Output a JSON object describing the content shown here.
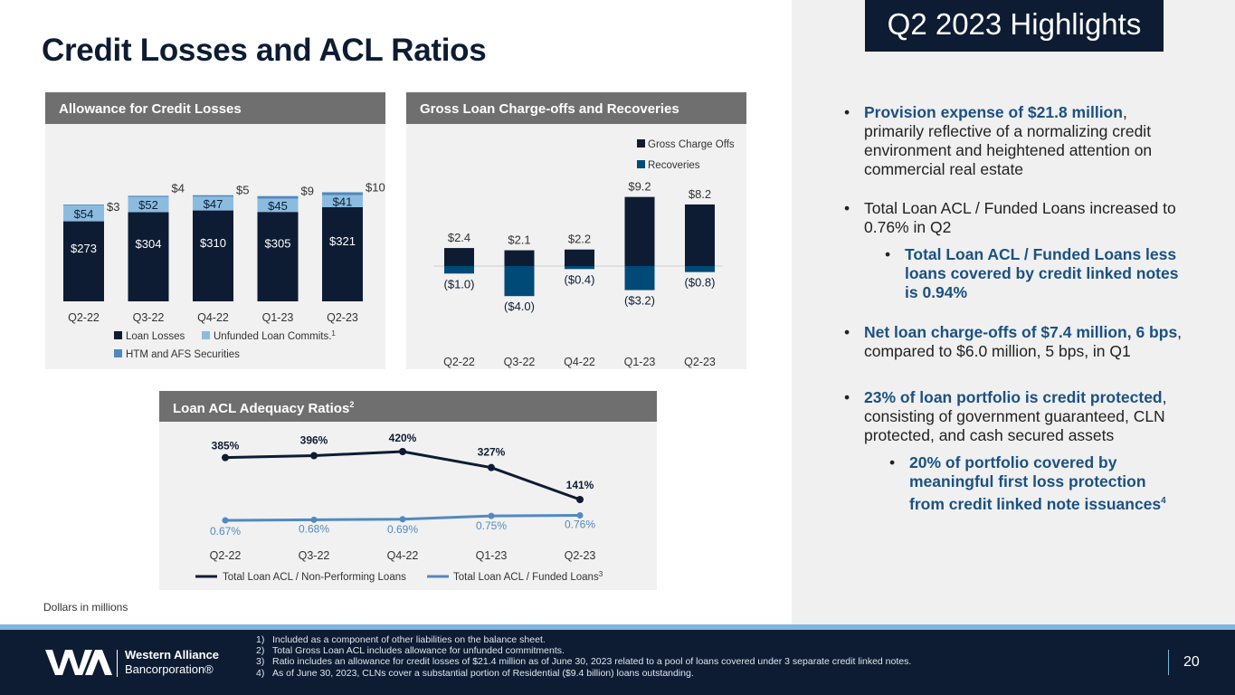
{
  "page": {
    "title": "Credit Losses and ACL Ratios",
    "highlights_badge": "Q2 2023 Highlights",
    "dollars_note": "Dollars in millions",
    "page_number": "20"
  },
  "colors": {
    "navy": "#0d1c33",
    "light_blue": "#8bbcdf",
    "mid_blue": "#4f88c0",
    "dark_blue": "#004a78",
    "line_blue": "#5289c1",
    "panel_header": "#6f6f6f"
  },
  "chart_data": [
    {
      "id": "allowance",
      "type": "bar",
      "stacked": true,
      "title": "Allowance for Credit Losses",
      "categories": [
        "Q2-22",
        "Q3-22",
        "Q4-22",
        "Q1-23",
        "Q2-23"
      ],
      "series": [
        {
          "name": "Loan Losses",
          "values": [
            273,
            304,
            310,
            305,
            321
          ],
          "labels": [
            "$273",
            "$304",
            "$310",
            "$305",
            "$321"
          ]
        },
        {
          "name": "Unfunded Loan Commits.",
          "name_sup": "1",
          "values": [
            54,
            52,
            47,
            45,
            41
          ],
          "labels": [
            "$54",
            "$52",
            "$47",
            "$45",
            "$41"
          ]
        },
        {
          "name": "HTM and AFS Securities",
          "values": [
            3,
            4,
            5,
            9,
            10
          ],
          "labels": [
            "$3",
            "$4",
            "$5",
            "$9",
            "$10"
          ]
        }
      ],
      "ylim": [
        0,
        380
      ]
    },
    {
      "id": "chargeoffs",
      "type": "bar",
      "title": "Gross Loan Charge-offs and Recoveries",
      "categories": [
        "Q2-22",
        "Q3-22",
        "Q4-22",
        "Q1-23",
        "Q2-23"
      ],
      "series": [
        {
          "name": "Gross Charge Offs",
          "values": [
            2.4,
            2.1,
            2.2,
            9.2,
            8.2
          ],
          "labels": [
            "$2.4",
            "$2.1",
            "$2.2",
            "$9.2",
            "$8.2"
          ]
        },
        {
          "name": "Recoveries",
          "values": [
            -1.0,
            -4.0,
            -0.4,
            -3.2,
            -0.8
          ],
          "labels": [
            "($1.0)",
            "($4.0)",
            "($0.4)",
            "($3.2)",
            "($0.8)"
          ]
        }
      ],
      "ylim": [
        -4.5,
        10.5
      ]
    },
    {
      "id": "ratios",
      "type": "line",
      "title": "Loan ACL Adequacy Ratios",
      "title_sup": "2",
      "categories": [
        "Q2-22",
        "Q3-22",
        "Q4-22",
        "Q1-23",
        "Q2-23"
      ],
      "series": [
        {
          "name": "Total Loan ACL / Non-Performing Loans",
          "values": [
            385,
            396,
            420,
            327,
            141
          ],
          "labels": [
            "385%",
            "396%",
            "420%",
            "327%",
            "141%"
          ]
        },
        {
          "name": "Total Loan ACL / Funded Loans",
          "name_sup": "3",
          "values": [
            0.67,
            0.68,
            0.69,
            0.75,
            0.76
          ],
          "labels": [
            "0.67%",
            "0.68%",
            "0.69%",
            "0.75%",
            "0.76%"
          ]
        }
      ]
    }
  ],
  "highlights": {
    "b1_bold": "Provision expense of $21.8 million",
    "b1_rest": ", primarily reflective of a normalizing credit environment and heightened attention on commercial real estate",
    "b2": "Total Loan ACL / Funded Loans increased to 0.76% in Q2",
    "b2_sub": "Total Loan ACL / Funded Loans less loans covered by credit linked notes is 0.94%",
    "b3_bold": "Net loan charge-offs of $7.4 million, 6 bps",
    "b3_rest": ", compared to $6.0 million, 5 bps, in Q1",
    "b4_bold": "23% of loan portfolio is credit protected",
    "b4_rest": ", consisting of government guaranteed, CLN protected, and cash secured assets",
    "b4_sub": "20% of portfolio covered by meaningful first loss protection from credit linked note issuances",
    "b4_sub_sup": "4"
  },
  "footnotes": [
    {
      "num": "1)",
      "text": "Included as a component of other liabilities on the balance sheet."
    },
    {
      "num": "2)",
      "text": "Total Gross Loan ACL includes allowance for unfunded commitments."
    },
    {
      "num": "3)",
      "text": "Ratio includes an allowance for credit losses of $21.4 million as of June 30, 2023 related to a pool of loans covered under 3 separate credit linked notes."
    },
    {
      "num": "4)",
      "text": "As of June 30, 2023, CLNs cover a substantial portion of Residential ($9.4 billion) loans outstanding."
    }
  ],
  "logo": {
    "name": "Western Alliance",
    "sub": "Bancorporation®"
  }
}
